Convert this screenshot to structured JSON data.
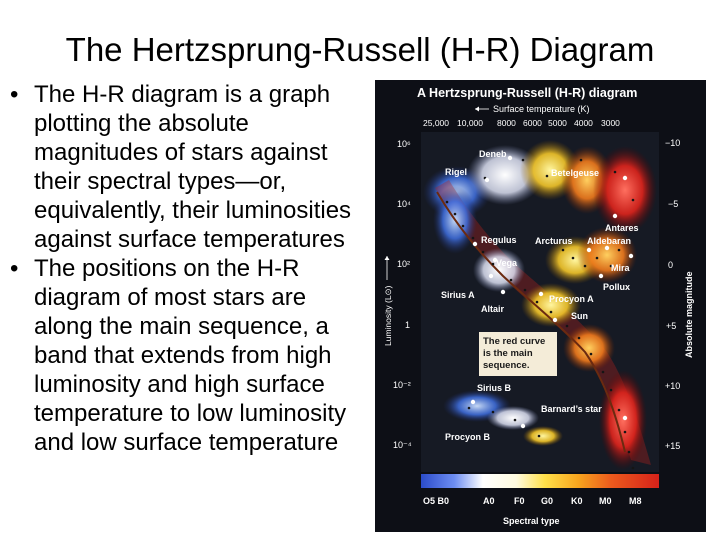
{
  "slide": {
    "title": "The Hertzsprung-Russell (H-R) Diagram",
    "bullets": [
      "The H-R diagram is a graph plotting the absolute magnitudes of stars against their spectral types—or, equivalently, their luminosities against surface temperatures",
      "The positions on the H-R diagram of most stars are along the main sequence, a band that extends from high luminosity and high surface temperature to low luminosity and low surface temperature"
    ],
    "bullet_symbol": "•"
  },
  "figure": {
    "title": "A Hertzsprung-Russell (H-R) diagram",
    "top_axis_label": "Surface temperature (K)",
    "top_ticks": [
      "25,000",
      "10,000",
      "8000",
      "6000",
      "5000",
      "4000",
      "3000"
    ],
    "left_axis_label": "Luminosity (L⊙)",
    "left_ticks": [
      "10⁶",
      "10⁴",
      "10²",
      "1",
      "10⁻²",
      "10⁻⁴"
    ],
    "right_axis_label": "Absolute magnitude",
    "right_ticks": [
      "−10",
      "−5",
      "0",
      "+5",
      "+10",
      "+15"
    ],
    "bottom_axis_label": "Spectral type",
    "bottom_ticks": [
      "O5 B0",
      "A0",
      "F0",
      "G0",
      "K0",
      "M0",
      "M8"
    ],
    "star_labels": {
      "deneb": "Deneb",
      "rigel": "Rigel",
      "betelgeuse": "Betelgeuse",
      "antares": "Antares",
      "regulus": "Regulus",
      "arcturus": "Arcturus",
      "aldebaran": "Aldebaran",
      "vega": "Vega",
      "mira": "Mira",
      "pollux": "Pollux",
      "sirius_a": "Sirius A",
      "procyon_a": "Procyon A",
      "altair": "Altair",
      "sun": "Sun",
      "sirius_b": "Sirius B",
      "barnards_star": "Barnard’s star",
      "procyon_b": "Procyon B"
    },
    "note_lines": [
      "The red curve",
      "is the main",
      "sequence."
    ],
    "colors": {
      "panel_background": "#0d0f16",
      "main_sequence_curve": "#6b2a10",
      "note_fill": "#f4ecd8",
      "title_text": "#ffffff",
      "tick_text": "#ffffff"
    }
  }
}
